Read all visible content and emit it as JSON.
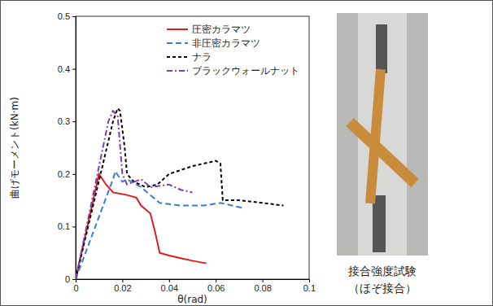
{
  "chart_data": {
    "type": "line",
    "x_label": "θ(rad)",
    "y_label": "曲げモーメント(kN·m)",
    "xlim": [
      0,
      0.1
    ],
    "ylim": [
      0,
      0.5
    ],
    "xticks": [
      0,
      0.02,
      0.04,
      0.06,
      0.08,
      0.1
    ],
    "yticks": [
      0,
      0.1,
      0.2,
      0.3,
      0.4,
      0.5
    ],
    "grid": false,
    "legend": "upper right",
    "annotations": [
      "接合強度試験",
      "（ほぞ接合）"
    ],
    "series": [
      {
        "name": "圧密カラマツ",
        "color": "#e31a1c",
        "line_style": "solid",
        "x": [
          0,
          0.01,
          0.013,
          0.016,
          0.022,
          0.026,
          0.028,
          0.032,
          0.034,
          0.036,
          0.04,
          0.045,
          0.05,
          0.056
        ],
        "values": [
          0,
          0.2,
          0.18,
          0.165,
          0.16,
          0.155,
          0.14,
          0.125,
          0.09,
          0.05,
          0.045,
          0.04,
          0.035,
          0.03
        ]
      },
      {
        "name": "非圧密カラマツ",
        "color": "#3d7cc9",
        "line_style": "dashed",
        "x": [
          0,
          0.016,
          0.017,
          0.02,
          0.022,
          0.028,
          0.032,
          0.036,
          0.045,
          0.055,
          0.062,
          0.072
        ],
        "values": [
          0,
          0.19,
          0.205,
          0.185,
          0.19,
          0.175,
          0.16,
          0.145,
          0.14,
          0.14,
          0.145,
          0.135
        ]
      },
      {
        "name": "ナラ",
        "color": "#000000",
        "line_style": "short-dashed",
        "x": [
          0,
          0.016,
          0.018,
          0.019,
          0.021,
          0.022,
          0.025,
          0.03,
          0.035,
          0.04,
          0.05,
          0.06,
          0.062,
          0.063,
          0.07,
          0.08,
          0.089
        ],
        "values": [
          0,
          0.3,
          0.325,
          0.32,
          0.25,
          0.2,
          0.185,
          0.175,
          0.18,
          0.2,
          0.215,
          0.225,
          0.22,
          0.15,
          0.15,
          0.145,
          0.14
        ]
      },
      {
        "name": "ブラックウォールナット",
        "color": "#7a3fb0",
        "line_style": "dash-dot",
        "x": [
          0,
          0.014,
          0.016,
          0.018,
          0.02,
          0.022,
          0.028,
          0.032,
          0.04,
          0.045,
          0.05
        ],
        "values": [
          0,
          0.3,
          0.32,
          0.31,
          0.2,
          0.18,
          0.19,
          0.175,
          0.18,
          0.17,
          0.165
        ]
      }
    ]
  }
}
